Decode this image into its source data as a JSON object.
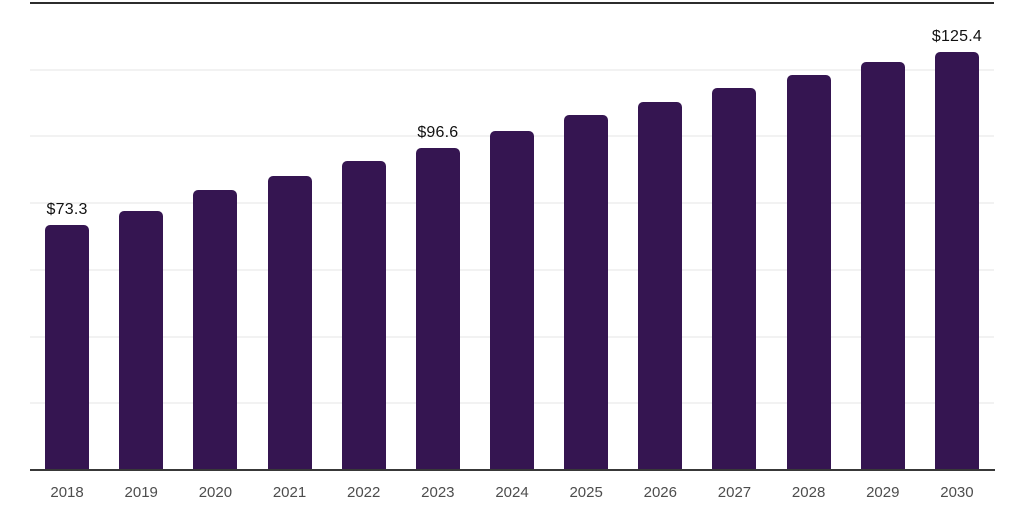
{
  "chart_data": {
    "type": "bar",
    "categories": [
      "2018",
      "2019",
      "2020",
      "2021",
      "2022",
      "2023",
      "2024",
      "2025",
      "2026",
      "2027",
      "2028",
      "2029",
      "2030"
    ],
    "values": [
      73.3,
      77.6,
      84.0,
      88.1,
      92.6,
      96.6,
      101.5,
      106.5,
      110.4,
      114.4,
      118.5,
      122.4,
      125.4
    ],
    "value_labels": [
      {
        "category": "2018",
        "text": "$73.3"
      },
      {
        "category": "2023",
        "text": "$96.6"
      },
      {
        "category": "2030",
        "text": "$125.4"
      }
    ],
    "title": "",
    "xlabel": "",
    "ylabel": "",
    "ylim": [
      0,
      140
    ],
    "gridline_interval": 20,
    "grid": "horizontal",
    "legend": "none",
    "colors": {
      "bar": "#351551",
      "gridline": "#f2f2f2",
      "top_rule": "#2c2c2c",
      "baseline": "#383838",
      "value_label": "#111111",
      "tick_label": "#4d4d4d",
      "background": "#ffffff"
    }
  }
}
